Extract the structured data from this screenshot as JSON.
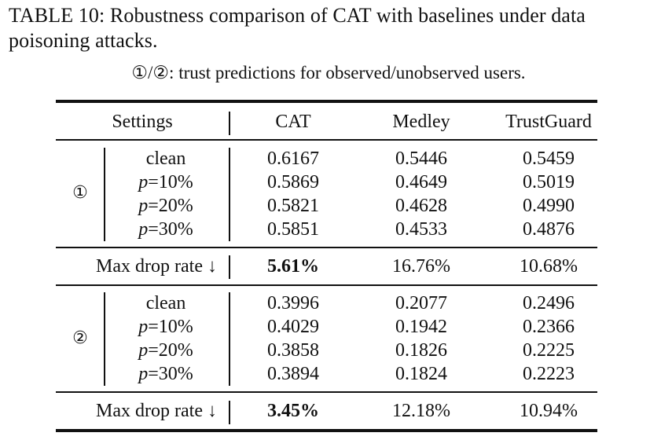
{
  "caption": {
    "title": "TABLE 10: Robustness comparison of CAT with baselines under data poisoning attacks.",
    "legend": "①/②: trust predictions for observed/unobserved users."
  },
  "table": {
    "headers": {
      "settings": "Settings",
      "cols": [
        "CAT",
        "Medley",
        "TrustGuard"
      ]
    },
    "groups": [
      {
        "marker": "①",
        "rows": [
          {
            "setting_prefix": "",
            "setting": "clean",
            "values": [
              "0.6167",
              "0.5446",
              "0.5459"
            ]
          },
          {
            "setting_prefix": "p",
            "setting": "=10%",
            "values": [
              "0.5869",
              "0.4649",
              "0.5019"
            ]
          },
          {
            "setting_prefix": "p",
            "setting": "=20%",
            "values": [
              "0.5821",
              "0.4628",
              "0.4990"
            ]
          },
          {
            "setting_prefix": "p",
            "setting": "=30%",
            "values": [
              "0.5851",
              "0.4533",
              "0.4876"
            ]
          }
        ],
        "summary": {
          "label": "Max drop rate ↓",
          "values": [
            "5.61%",
            "16.76%",
            "10.68%"
          ]
        }
      },
      {
        "marker": "②",
        "rows": [
          {
            "setting_prefix": "",
            "setting": "clean",
            "values": [
              "0.3996",
              "0.2077",
              "0.2496"
            ]
          },
          {
            "setting_prefix": "p",
            "setting": "=10%",
            "values": [
              "0.4029",
              "0.1942",
              "0.2366"
            ]
          },
          {
            "setting_prefix": "p",
            "setting": "=20%",
            "values": [
              "0.3858",
              "0.1826",
              "0.2225"
            ]
          },
          {
            "setting_prefix": "p",
            "setting": "=30%",
            "values": [
              "0.3894",
              "0.1824",
              "0.2223"
            ]
          }
        ],
        "summary": {
          "label": "Max drop rate ↓",
          "values": [
            "3.45%",
            "12.18%",
            "10.94%"
          ]
        }
      }
    ]
  }
}
